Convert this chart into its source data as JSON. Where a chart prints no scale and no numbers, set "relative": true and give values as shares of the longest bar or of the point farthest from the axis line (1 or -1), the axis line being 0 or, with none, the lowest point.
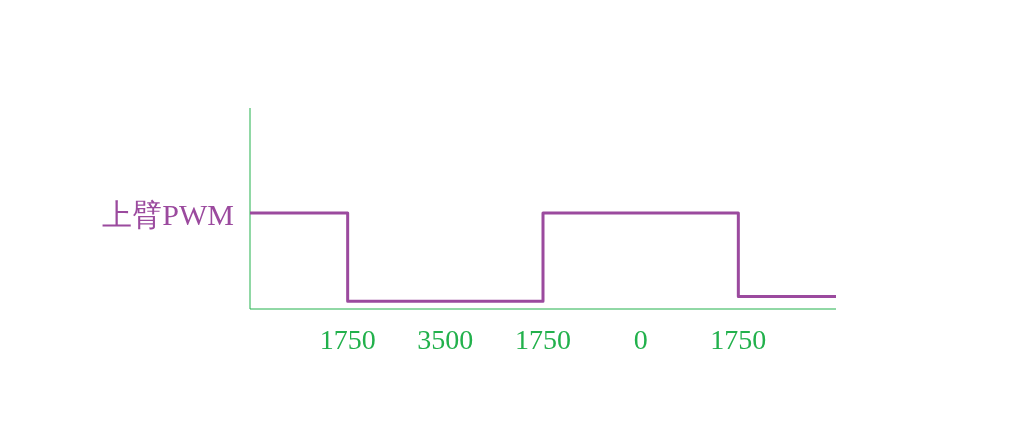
{
  "chart_data": {
    "type": "step",
    "relative": true,
    "categories": [
      null,
      "1750",
      "3500",
      "1750",
      "0",
      "1750",
      null
    ],
    "series": [
      {
        "name": "上臂PWM",
        "color": "#9b4a9e",
        "values": [
          1,
          0.08,
          0.08,
          1,
          1,
          0.13,
          0.13
        ]
      }
    ]
  }
}
